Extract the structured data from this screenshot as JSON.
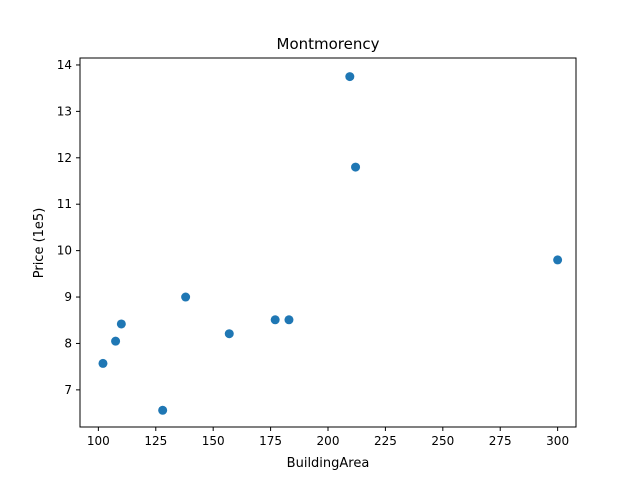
{
  "chart_data": {
    "type": "scatter",
    "title": "Montmorency",
    "xlabel": "BuildingArea",
    "ylabel": "Price (1e5)",
    "xlim": [
      92,
      308
    ],
    "ylim": [
      6.2,
      14.15
    ],
    "xticks": [
      100,
      125,
      150,
      175,
      200,
      225,
      250,
      275,
      300
    ],
    "yticks": [
      7,
      8,
      9,
      10,
      11,
      12,
      13,
      14
    ],
    "marker_color": "#1f77b4",
    "grid": false,
    "points": [
      {
        "x": 102,
        "y": 7.57
      },
      {
        "x": 107.5,
        "y": 8.05
      },
      {
        "x": 110,
        "y": 8.42
      },
      {
        "x": 128,
        "y": 6.56
      },
      {
        "x": 138,
        "y": 9.0
      },
      {
        "x": 157,
        "y": 8.21
      },
      {
        "x": 177,
        "y": 8.51
      },
      {
        "x": 183,
        "y": 8.51
      },
      {
        "x": 209.5,
        "y": 13.75
      },
      {
        "x": 212,
        "y": 11.8
      },
      {
        "x": 300,
        "y": 9.8
      }
    ]
  }
}
